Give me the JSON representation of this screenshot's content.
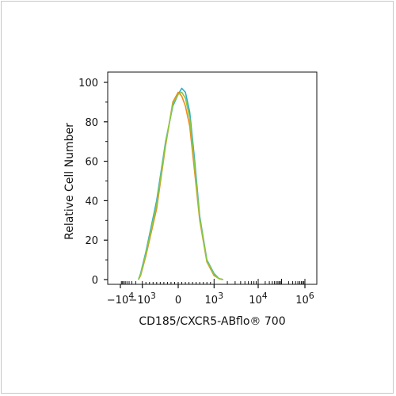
{
  "chart_data": {
    "type": "line",
    "title": "",
    "xlabel": "CD185/CXCR5-ABflo® 700",
    "ylabel": "Relative Cell Number",
    "xscale": "biexponential",
    "grid": false,
    "legend": "none",
    "ylim": [
      0,
      100
    ],
    "xlim": [
      -15000,
      1000000
    ],
    "x_ticks": [
      {
        "value": -10000,
        "base": "−10",
        "exp": "4"
      },
      {
        "value": -1000,
        "base": "−10",
        "exp": "3"
      },
      {
        "value": 0,
        "base": "0",
        "exp": ""
      },
      {
        "value": 1000,
        "base": "10",
        "exp": "3"
      },
      {
        "value": 10000,
        "base": "10",
        "exp": "4"
      },
      {
        "value": 1000000,
        "base": "10",
        "exp": "6"
      }
    ],
    "y_ticks": [
      0,
      20,
      40,
      60,
      80,
      100
    ],
    "series": [
      {
        "color": "#29aeca",
        "x": [
          -1500,
          -1200,
          -900,
          -600,
          -350,
          -150,
          0,
          100,
          200,
          320,
          450,
          600,
          800,
          1000,
          1300,
          1600
        ],
        "y": [
          0,
          3,
          14,
          40,
          70,
          88,
          94,
          97,
          95,
          85,
          62,
          32,
          10,
          3,
          0.5,
          0
        ]
      },
      {
        "color": "#ee8a1e",
        "x": [
          -1500,
          -1200,
          -900,
          -600,
          -350,
          -150,
          0,
          100,
          200,
          320,
          450,
          600,
          800,
          1000,
          1300,
          1600
        ],
        "y": [
          0,
          2,
          12,
          36,
          68,
          90,
          95,
          93,
          88,
          78,
          56,
          30,
          9,
          2,
          0.5,
          0
        ]
      },
      {
        "color": "#8cc63f",
        "x": [
          -1500,
          -1200,
          -900,
          -600,
          -350,
          -150,
          0,
          100,
          200,
          320,
          450,
          600,
          800,
          1000,
          1300,
          1600
        ],
        "y": [
          0,
          2.5,
          13,
          38,
          69,
          89,
          94,
          95,
          92,
          82,
          59,
          31,
          9.5,
          2.5,
          0.5,
          0
        ]
      }
    ]
  }
}
